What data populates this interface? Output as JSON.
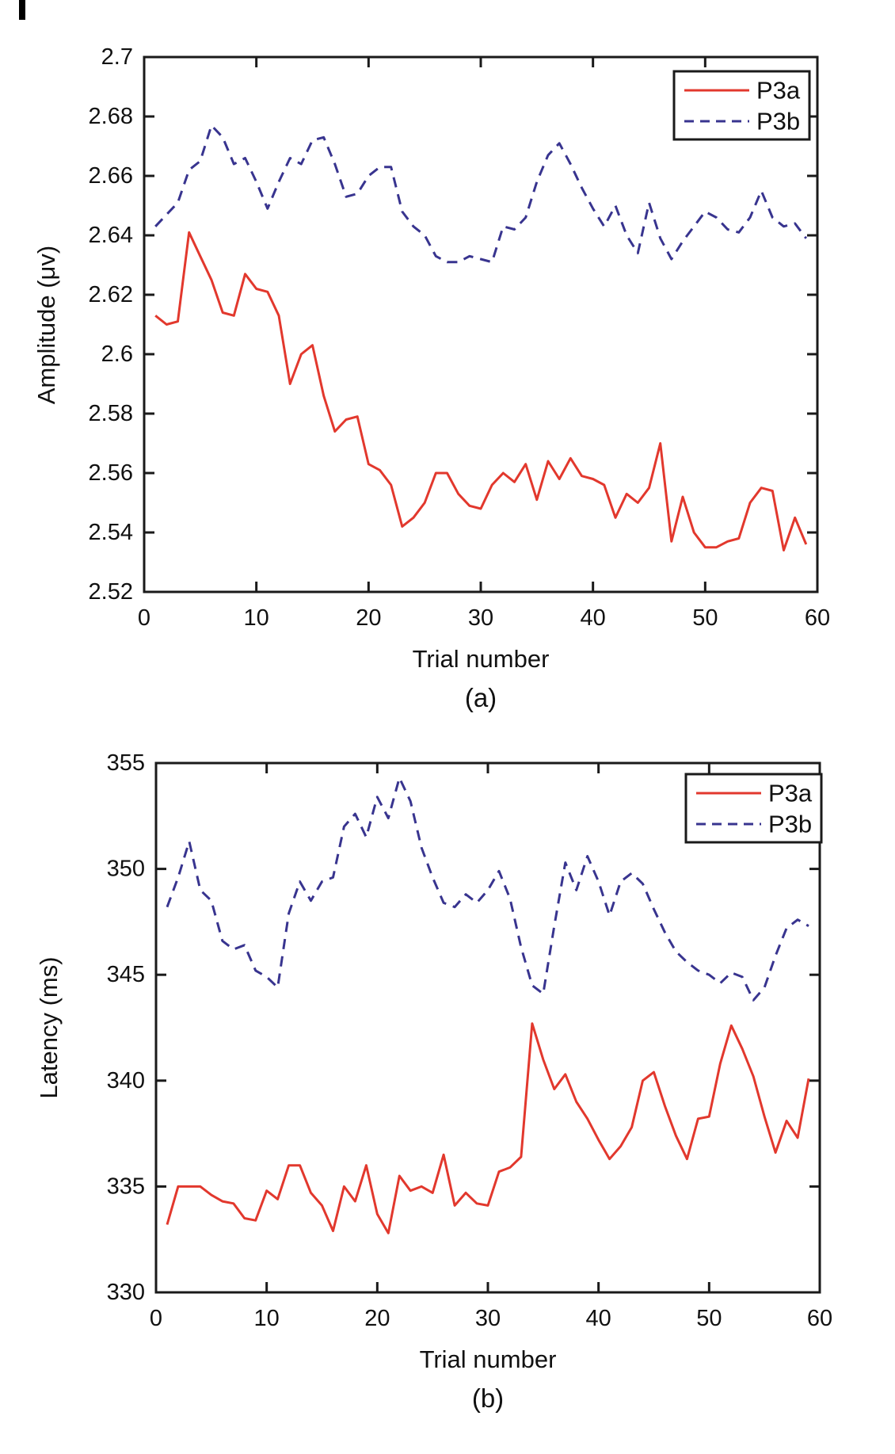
{
  "figure": {
    "background": "#ffffff",
    "axis_color": "#1a1a1a",
    "text_color": "#111111"
  },
  "chart_data": [
    {
      "type": "line",
      "panel_label": "(a)",
      "xlabel": "Trial number",
      "ylabel": "Amplitude (μv)",
      "xlim": [
        0,
        60
      ],
      "ylim": [
        2.52,
        2.7
      ],
      "grid": false,
      "legend_position": "top-right",
      "xticks": [
        0,
        10,
        20,
        30,
        40,
        50,
        60
      ],
      "xtick_labels": [
        "0",
        "10",
        "20",
        "30",
        "40",
        "50",
        "60"
      ],
      "yticks": [
        2.52,
        2.54,
        2.56,
        2.58,
        2.6,
        2.62,
        2.64,
        2.66,
        2.68,
        2.7
      ],
      "ytick_labels": [
        "2.52",
        "2.54",
        "2.56",
        "2.58",
        "2.6",
        "2.62",
        "2.64",
        "2.66",
        "2.68",
        "2.7"
      ],
      "x": {
        "from": 1,
        "to": 59,
        "step": 1
      },
      "series": [
        {
          "name": "P3a",
          "color": "#e2382d",
          "style": "solid",
          "values": [
            2.613,
            2.61,
            2.611,
            2.641,
            2.633,
            2.625,
            2.614,
            2.613,
            2.627,
            2.622,
            2.621,
            2.613,
            2.59,
            2.6,
            2.603,
            2.586,
            2.574,
            2.578,
            2.579,
            2.563,
            2.561,
            2.556,
            2.542,
            2.545,
            2.55,
            2.56,
            2.56,
            2.553,
            2.549,
            2.548,
            2.556,
            2.56,
            2.557,
            2.563,
            2.551,
            2.564,
            2.558,
            2.565,
            2.559,
            2.558,
            2.556,
            2.545,
            2.553,
            2.55,
            2.555,
            2.57,
            2.537,
            2.552,
            2.54,
            2.535,
            2.535,
            2.537,
            2.538,
            2.55,
            2.555,
            2.554,
            2.534,
            2.545,
            2.536
          ]
        },
        {
          "name": "P3b",
          "color": "#38348f",
          "style": "dashed",
          "values": [
            2.643,
            2.647,
            2.651,
            2.662,
            2.665,
            2.677,
            2.673,
            2.664,
            2.666,
            2.658,
            2.649,
            2.658,
            2.666,
            2.664,
            2.672,
            2.673,
            2.664,
            2.653,
            2.654,
            2.66,
            2.663,
            2.663,
            2.648,
            2.643,
            2.64,
            2.633,
            2.631,
            2.631,
            2.633,
            2.632,
            2.631,
            2.643,
            2.642,
            2.646,
            2.658,
            2.667,
            2.671,
            2.664,
            2.656,
            2.649,
            2.643,
            2.65,
            2.64,
            2.634,
            2.651,
            2.639,
            2.632,
            2.638,
            2.643,
            2.648,
            2.646,
            2.642,
            2.641,
            2.646,
            2.655,
            2.646,
            2.643,
            2.644,
            2.639
          ]
        }
      ]
    },
    {
      "type": "line",
      "panel_label": "(b)",
      "xlabel": "Trial number",
      "ylabel": "Latency (ms)",
      "xlim": [
        0,
        60
      ],
      "ylim": [
        330,
        355
      ],
      "grid": false,
      "legend_position": "top-right",
      "xticks": [
        0,
        10,
        20,
        30,
        40,
        50,
        60
      ],
      "xtick_labels": [
        "0",
        "10",
        "20",
        "30",
        "40",
        "50",
        "60"
      ],
      "yticks": [
        330,
        335,
        340,
        345,
        350,
        355
      ],
      "ytick_labels": [
        "330",
        "335",
        "340",
        "345",
        "350",
        "355"
      ],
      "x": {
        "from": 1,
        "to": 59,
        "step": 1
      },
      "series": [
        {
          "name": "P3a",
          "color": "#e2382d",
          "style": "solid",
          "values": [
            333.2,
            335.0,
            335.0,
            335.0,
            334.6,
            334.3,
            334.2,
            333.5,
            333.4,
            334.8,
            334.4,
            336.0,
            336.0,
            334.7,
            334.1,
            332.9,
            335.0,
            334.3,
            336.0,
            333.7,
            332.8,
            335.5,
            334.8,
            335.0,
            334.7,
            336.5,
            334.1,
            334.7,
            334.2,
            334.1,
            335.7,
            335.9,
            336.4,
            342.7,
            341.0,
            339.6,
            340.3,
            339.0,
            338.2,
            337.2,
            336.3,
            336.9,
            337.8,
            340.0,
            340.4,
            338.8,
            337.4,
            336.3,
            338.2,
            338.3,
            340.8,
            342.6,
            341.5,
            340.2,
            338.3,
            336.6,
            338.1,
            337.3,
            340.1
          ]
        },
        {
          "name": "P3b",
          "color": "#38348f",
          "style": "dashed",
          "values": [
            348.2,
            349.6,
            351.3,
            349.0,
            348.5,
            346.6,
            346.2,
            346.4,
            345.2,
            344.9,
            344.4,
            347.9,
            349.4,
            348.5,
            349.4,
            349.6,
            352.0,
            352.6,
            351.5,
            353.4,
            352.4,
            354.3,
            353.2,
            351.0,
            349.6,
            348.4,
            348.2,
            348.8,
            348.4,
            349.0,
            349.9,
            348.6,
            346.3,
            344.5,
            344.1,
            347.3,
            350.3,
            349.0,
            350.6,
            349.4,
            347.8,
            349.4,
            349.8,
            349.3,
            348.1,
            347.0,
            346.1,
            345.6,
            345.2,
            345.0,
            344.6,
            345.1,
            344.9,
            343.8,
            344.4,
            345.9,
            347.2,
            347.6,
            347.3
          ]
        }
      ]
    }
  ]
}
